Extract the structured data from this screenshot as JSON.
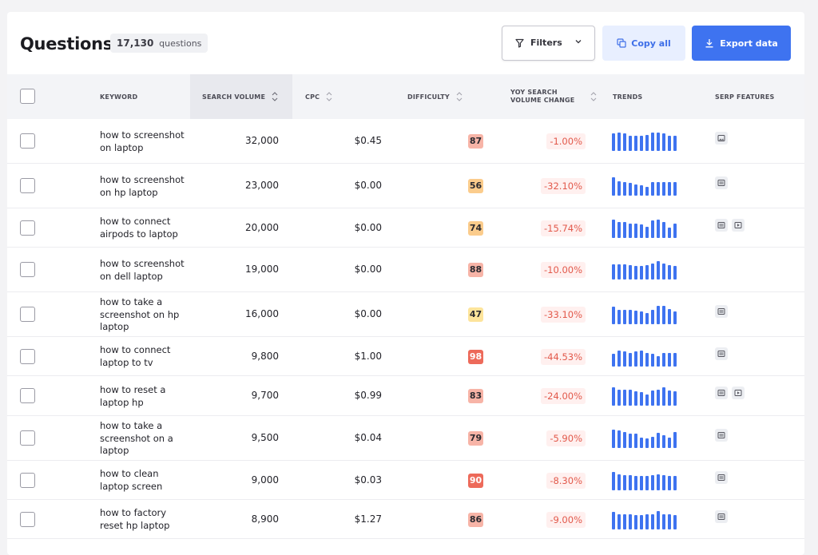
{
  "header": {
    "title": "Questions",
    "count_value": "17,130",
    "count_unit": "questions",
    "filters_label": "Filters",
    "copy_label": "Copy all",
    "export_label": "Export data"
  },
  "columns": {
    "keyword": "KEYWORD",
    "volume": "SEARCH VOLUME",
    "cpc": "CPC",
    "difficulty": "DIFFICULTY",
    "yoy_line1": "YOY SEARCH",
    "yoy_line2": "VOLUME CHANGE",
    "trends": "TRENDS",
    "serp": "SERP FEATURES"
  },
  "colors": {
    "accent": "#3e73f0",
    "negative": "#e2594b"
  },
  "rows": [
    {
      "keyword": "how to screenshot on laptop",
      "volume": "32,000",
      "cpc": "$0.45",
      "kd": "87",
      "yoy": "-1.00%",
      "trend": [
        0.9,
        0.95,
        0.9,
        0.8,
        0.8,
        0.8,
        0.85,
        0.95,
        0.95,
        0.9,
        0.8,
        0.8
      ],
      "serp": [
        "image-icon"
      ]
    },
    {
      "keyword": "how to screenshot on hp laptop",
      "volume": "23,000",
      "cpc": "$0.00",
      "kd": "56",
      "yoy": "-32.10%",
      "trend": [
        0.95,
        0.75,
        0.7,
        0.65,
        0.6,
        0.55,
        0.45,
        0.7,
        0.7,
        0.7,
        0.7,
        0.7
      ],
      "serp": [
        "list-icon"
      ]
    },
    {
      "keyword": "how to connect airpods to laptop",
      "volume": "20,000",
      "cpc": "$0.00",
      "kd": "74",
      "yoy": "-15.74%",
      "trend": [
        0.95,
        0.85,
        0.85,
        0.75,
        0.75,
        0.7,
        0.6,
        0.9,
        0.95,
        0.85,
        0.55,
        0.75
      ],
      "serp": [
        "list-icon",
        "video-icon"
      ]
    },
    {
      "keyword": "how to screenshot on dell laptop",
      "volume": "19,000",
      "cpc": "$0.00",
      "kd": "88",
      "yoy": "-10.00%",
      "trend": [
        0.8,
        0.8,
        0.8,
        0.75,
        0.7,
        0.7,
        0.75,
        0.85,
        0.95,
        0.85,
        0.75,
        0.7
      ],
      "serp": []
    },
    {
      "keyword": "how to take a screenshot on hp laptop",
      "volume": "16,000",
      "cpc": "$0.00",
      "kd": "47",
      "yoy": "-33.10%",
      "trend": [
        0.9,
        0.75,
        0.75,
        0.75,
        0.7,
        0.65,
        0.6,
        0.75,
        0.95,
        0.95,
        0.8,
        0.65
      ],
      "serp": [
        "list-icon"
      ]
    },
    {
      "keyword": "how to connect laptop to tv",
      "volume": "9,800",
      "cpc": "$1.00",
      "kd": "98",
      "yoy": "-44.53%",
      "trend": [
        0.65,
        0.85,
        0.8,
        0.7,
        0.8,
        0.85,
        0.7,
        0.65,
        0.55,
        0.7,
        0.7,
        0.7
      ],
      "serp": [
        "list-icon"
      ]
    },
    {
      "keyword": "how to reset a laptop hp",
      "volume": "9,700",
      "cpc": "$0.99",
      "kd": "83",
      "yoy": "-24.00%",
      "trend": [
        0.95,
        0.85,
        0.85,
        0.85,
        0.75,
        0.7,
        0.6,
        0.8,
        0.85,
        0.95,
        0.8,
        0.75
      ],
      "serp": [
        "list-icon",
        "video-icon"
      ]
    },
    {
      "keyword": "how to take a screenshot on a laptop",
      "volume": "9,500",
      "cpc": "$0.04",
      "kd": "79",
      "yoy": "-5.90%",
      "trend": [
        0.95,
        0.9,
        0.85,
        0.75,
        0.75,
        0.55,
        0.5,
        0.6,
        0.8,
        0.65,
        0.55,
        0.85
      ],
      "serp": [
        "list-icon"
      ]
    },
    {
      "keyword": "how to clean laptop screen",
      "volume": "9,000",
      "cpc": "$0.03",
      "kd": "90",
      "yoy": "-8.30%",
      "trend": [
        0.95,
        0.85,
        0.8,
        0.8,
        0.75,
        0.75,
        0.75,
        0.8,
        0.85,
        0.8,
        0.75,
        0.75
      ],
      "serp": [
        "list-icon"
      ]
    },
    {
      "keyword": "how to factory reset hp laptop",
      "volume": "8,900",
      "cpc": "$1.27",
      "kd": "86",
      "yoy": "-9.00%",
      "trend": [
        0.9,
        0.8,
        0.8,
        0.8,
        0.75,
        0.75,
        0.8,
        0.8,
        0.95,
        0.8,
        0.8,
        0.75
      ],
      "serp": [
        "list-icon"
      ]
    }
  ]
}
